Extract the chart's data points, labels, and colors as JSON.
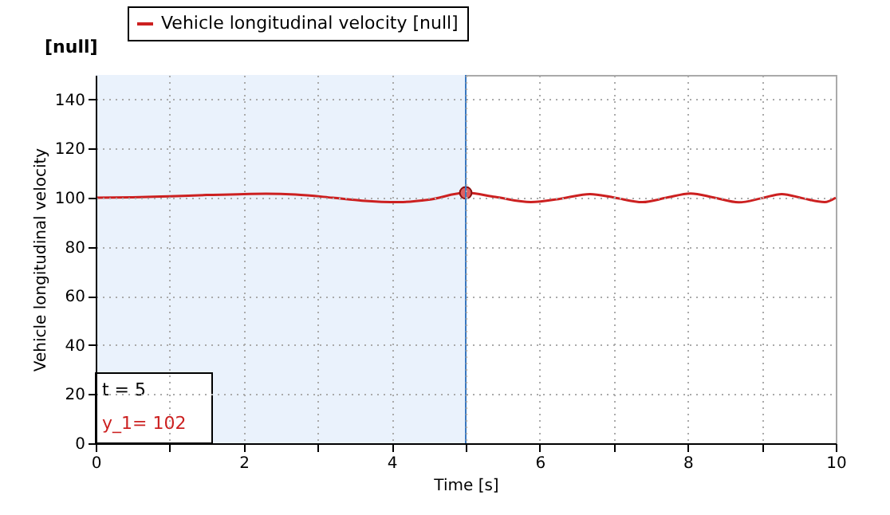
{
  "chart_data": {
    "type": "line",
    "xlabel": "Time [s]",
    "ylabel": "Vehicle longitudinal velocity",
    "annotations": [
      "[null]",
      "t    = 5",
      "y_1= 102"
    ],
    "series": [
      {
        "name": "Vehicle longitudinal velocity [null]",
        "color": "#cc2020",
        "x": [
          0,
          0.5,
          1,
          1.5,
          2,
          2.3,
          2.7,
          3.2,
          3.6,
          4.1,
          4.5,
          5,
          5.4,
          5.88,
          6.3,
          6.68,
          7.0,
          7.39,
          7.7,
          8.04,
          8.35,
          8.69,
          9.0,
          9.27,
          9.55,
          9.85,
          10
        ],
        "values": [
          100,
          100.2,
          100.6,
          101.1,
          101.5,
          101.6,
          101.3,
          100,
          98.8,
          98.2,
          99.2,
          102,
          100.3,
          98.2,
          99.7,
          101.5,
          100.1,
          98.2,
          99.9,
          101.7,
          100.1,
          98.1,
          99.8,
          101.5,
          99.8,
          98.2,
          100
        ]
      },
      {
        "type": "scatter",
        "marker": "circle",
        "color": "#e06060",
        "x": [
          5
        ],
        "values": [
          102
        ]
      }
    ],
    "xlim": [
      0,
      10
    ],
    "xticks": [
      0,
      {
        "value": 1,
        "label": null
      },
      2,
      {
        "value": 3,
        "label": null
      },
      4,
      {
        "value": 5,
        "label": null
      },
      6,
      {
        "value": 7,
        "label": null
      },
      8,
      {
        "value": 9,
        "label": null
      },
      10
    ],
    "ylim": [
      0,
      150
    ],
    "yticks": [
      0,
      20,
      40,
      60,
      80,
      100,
      120,
      140
    ],
    "bands": [
      {
        "axis": "x",
        "from": 0,
        "to": 5,
        "color": "#eaf2fc"
      }
    ],
    "ref_lines": [
      {
        "axis": "x",
        "value": 5,
        "color": "#3a78c0"
      }
    ],
    "grid": true,
    "legend": "top",
    "line_style": "solid",
    "marker": "none"
  }
}
